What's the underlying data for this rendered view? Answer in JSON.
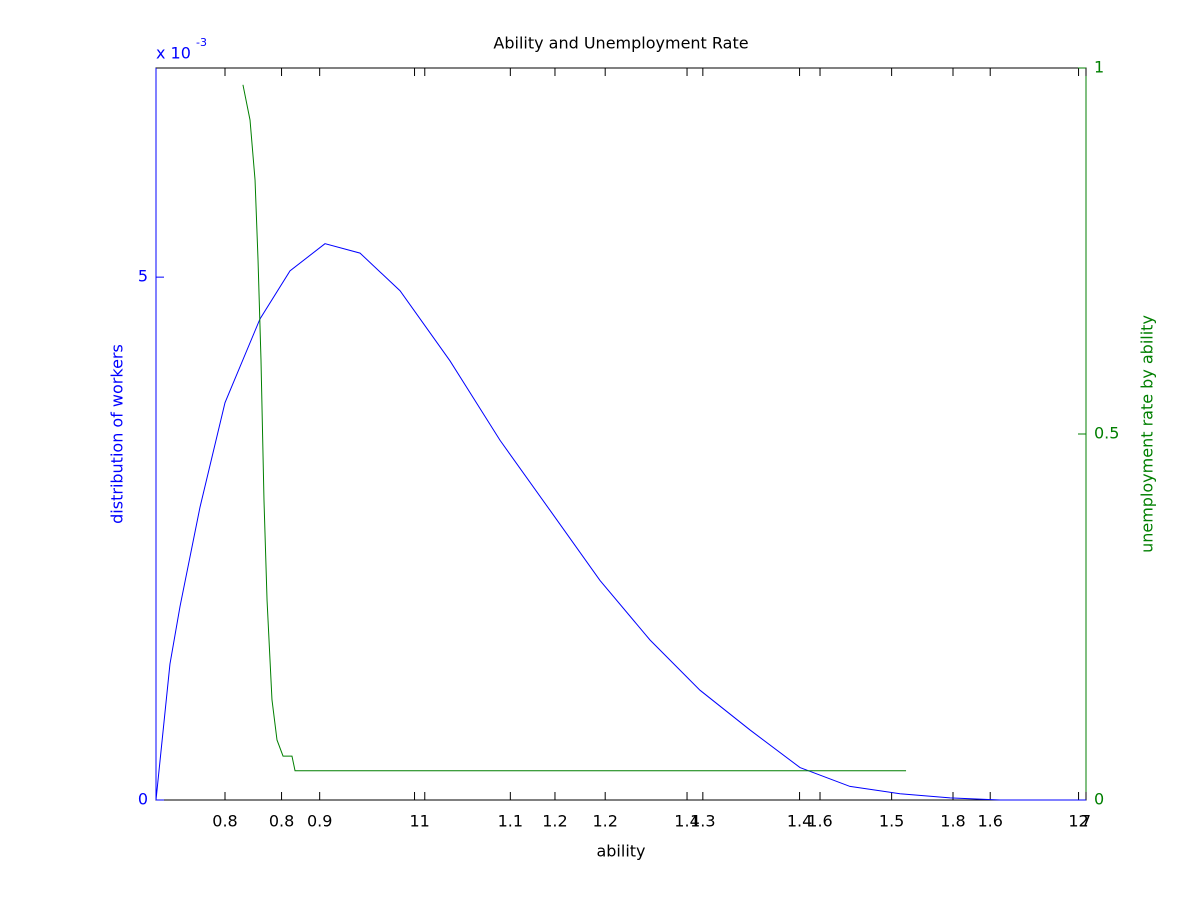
{
  "chart_data": {
    "type": "line",
    "title": "Ability and Unemployment Rate",
    "x_label": "ability",
    "y_label": "distribution of workers",
    "y2_label": "unemployment rate by ability",
    "y_multiplier": {
      "base": "x 10",
      "exponent": "-3"
    },
    "xlim": [
      0,
      100
    ],
    "xticks": [
      {
        "value": 7.42,
        "label": "0.8"
      },
      {
        "value": 13.5,
        "label": "0.8"
      },
      {
        "value": 17.6,
        "label": "0.9"
      },
      {
        "value": 27.8,
        "label": "1"
      },
      {
        "value": 28.9,
        "label": "1"
      },
      {
        "value": 38.1,
        "label": "1.1"
      },
      {
        "value": 42.9,
        "label": "1.2"
      },
      {
        "value": 48.3,
        "label": "1.2"
      },
      {
        "value": 57.1,
        "label": "1.4"
      },
      {
        "value": 58.8,
        "label": "1.3"
      },
      {
        "value": 69.2,
        "label": "1.4"
      },
      {
        "value": 71.4,
        "label": "1.6"
      },
      {
        "value": 79.1,
        "label": "1.5"
      },
      {
        "value": 85.7,
        "label": "1.8"
      },
      {
        "value": 89.7,
        "label": "1.6"
      },
      {
        "value": 99.2,
        "label": "12"
      },
      {
        "value": 100,
        "label": "7"
      }
    ],
    "ylim": [
      0,
      0.007
    ],
    "yticks": [
      0,
      {
        "value": 0.005,
        "label": "5"
      }
    ],
    "y2lim": [
      0,
      1
    ],
    "y2ticks": [
      0,
      0.5,
      1
    ],
    "series": [
      {
        "name": "distribution of workers",
        "color": "#0000ff",
        "x": [
          0,
          1.5,
          2.58,
          4.73,
          7.42,
          11.18,
          14.41,
          18.17,
          21.94,
          26.24,
          31.61,
          36.99,
          42.37,
          47.74,
          53.12,
          58.49,
          63.87,
          69.25,
          74.62,
          80,
          85.38,
          90.75,
          100
        ],
        "values": [
          0,
          0.0013,
          0.00185,
          0.0028,
          0.0038,
          0.0046,
          0.00506,
          0.00532,
          0.00523,
          0.00487,
          0.0042,
          0.00344,
          0.00277,
          0.0021,
          0.00153,
          0.00105,
          0.00067,
          0.00031,
          0.00013,
          6e-05,
          2e-05,
          0,
          0
        ]
      },
      {
        "name": "unemployment rate by ability",
        "color": "#007f00",
        "axis": "y2",
        "x": [
          9.35,
          10.11,
          10.65,
          10.97,
          11.29,
          11.61,
          11.94,
          12.47,
          13.01,
          13.66,
          14.62,
          14.95,
          80.65
        ],
        "values": [
          0.977,
          0.929,
          0.847,
          0.738,
          0.601,
          0.41,
          0.273,
          0.137,
          0.082,
          0.06,
          0.06,
          0.04,
          0.04
        ]
      }
    ]
  }
}
